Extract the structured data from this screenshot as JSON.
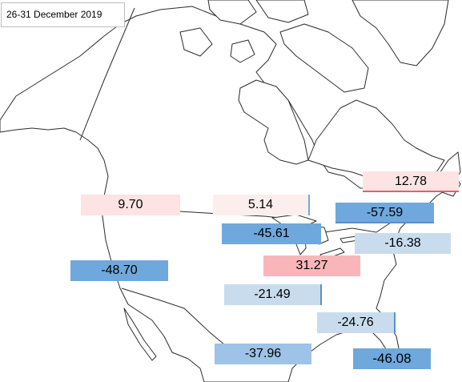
{
  "title": "26-31  December 2019",
  "colors": {
    "strong_negative": "#6fa8dc",
    "light_negative": "#c9dcee",
    "light_positive": "#fde3e4",
    "strong_positive": "#f9b6ba",
    "border_positive": "#e06070",
    "border_negative": "#5b8fc8"
  },
  "labels": [
    {
      "id": "label-12-78",
      "value": "12.78",
      "tone": "light_positive"
    },
    {
      "id": "label-9-70",
      "value": "9.70",
      "tone": "light_positive"
    },
    {
      "id": "label-5-14",
      "value": "5.14",
      "tone": "light_positive"
    },
    {
      "id": "label-minus-57-59",
      "value": "-57.59",
      "tone": "strong_negative"
    },
    {
      "id": "label-minus-45-61",
      "value": "-45.61",
      "tone": "strong_negative"
    },
    {
      "id": "label-minus-16-38",
      "value": "-16.38",
      "tone": "light_negative"
    },
    {
      "id": "label-minus-48-70",
      "value": "-48.70",
      "tone": "strong_negative"
    },
    {
      "id": "label-31-27",
      "value": "31.27",
      "tone": "strong_positive"
    },
    {
      "id": "label-minus-21-49",
      "value": "-21.49",
      "tone": "light_negative"
    },
    {
      "id": "label-minus-24-76",
      "value": "-24.76",
      "tone": "light_negative"
    },
    {
      "id": "label-minus-37-96",
      "value": "-37.96",
      "tone": "strong_negative"
    },
    {
      "id": "label-minus-46-08",
      "value": "-46.08",
      "tone": "strong_negative"
    }
  ]
}
